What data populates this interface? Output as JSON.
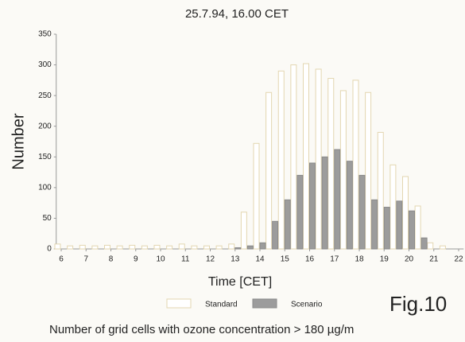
{
  "chart_data": {
    "type": "bar",
    "title": "25.7.94, 16.00 CET",
    "x_label": "Time [CET]",
    "y_label": "Number",
    "annotation": "Fig.10",
    "caption": "Number of grid cells with ozone concentration > 180 µg/m",
    "x": [
      6,
      6.5,
      7,
      7.5,
      8,
      8.5,
      9,
      9.5,
      10,
      10.5,
      11,
      11.5,
      12,
      12.5,
      13,
      13.5,
      14,
      14.5,
      15,
      15.5,
      16,
      16.5,
      17,
      17.5,
      18,
      18.5,
      19,
      19.5,
      20,
      20.5,
      21,
      21.5
    ],
    "series": [
      {
        "name": "Standard",
        "color": "#ffffff",
        "stroke": "#e3d6b0",
        "values": [
          8,
          5,
          6,
          5,
          6,
          5,
          6,
          5,
          6,
          5,
          8,
          5,
          5,
          5,
          8,
          60,
          172,
          255,
          290,
          300,
          302,
          293,
          278,
          258,
          275,
          255,
          190,
          137,
          118,
          70,
          10,
          5
        ]
      },
      {
        "name": "Scenario",
        "color": "#9c9c9c",
        "stroke": "#8a8a8a",
        "values": [
          0,
          0,
          0,
          0,
          0,
          0,
          0,
          0,
          0,
          0,
          0,
          0,
          0,
          0,
          2,
          5,
          10,
          45,
          80,
          120,
          140,
          150,
          162,
          143,
          120,
          80,
          68,
          78,
          62,
          18,
          0,
          0
        ]
      }
    ],
    "xlim": [
      5.8,
      22.2
    ],
    "xticks": [
      6,
      7,
      8,
      9,
      10,
      11,
      12,
      13,
      14,
      15,
      16,
      17,
      18,
      19,
      20,
      21,
      22
    ],
    "ylim": [
      0,
      350
    ],
    "yticks": [
      0,
      50,
      100,
      150,
      200,
      250,
      300,
      350
    ],
    "grid": false,
    "legend": "bottom"
  }
}
